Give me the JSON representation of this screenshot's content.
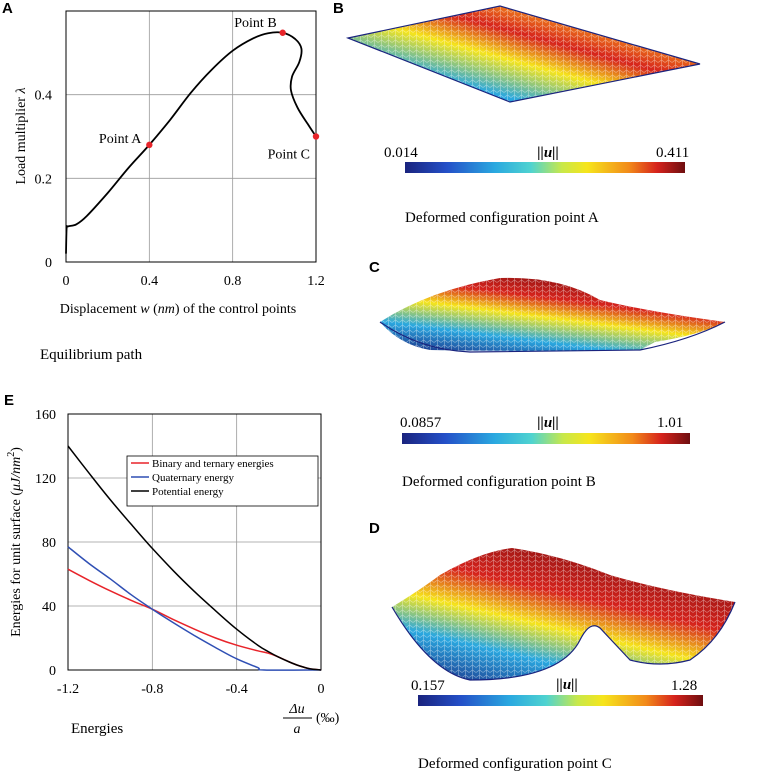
{
  "colors": {
    "red": "#e8242a",
    "blue": "#2f4fb4",
    "black": "#000000",
    "point": "#e8242a"
  },
  "panel_labels": {
    "A": "A",
    "B": "B",
    "C": "C",
    "D": "D",
    "E": "E"
  },
  "chart_data": [
    {
      "type": "line",
      "id": "A",
      "title": "",
      "caption": "Equilibrium path",
      "xlabel": "Displacement w (nm) of the control points",
      "xlabel_parts": {
        "pre": "Displacement ",
        "w": "w",
        "mid": " (",
        "nm": "nm",
        "post": ") of the control points"
      },
      "ylabel": "Load multiplier λ",
      "ylabel_parts": {
        "text": "Load multiplier ",
        "sym": "λ"
      },
      "xlim": [
        0,
        1.2
      ],
      "ylim": [
        0,
        0.6
      ],
      "xticks": [
        0,
        0.4,
        0.8,
        1.2
      ],
      "xtick_labels": [
        "0",
        "0.4",
        "0.8",
        "1.2"
      ],
      "yticks": [
        0,
        0.2,
        0.4
      ],
      "ytick_labels": [
        "0",
        "0.2",
        "0.4"
      ],
      "series": [
        {
          "name": "equilibrium path",
          "points": [
            [
              0,
              0.02
            ],
            [
              0.003,
              0.08
            ],
            [
              0.01,
              0.085
            ],
            [
              0.05,
              0.09
            ],
            [
              0.1,
              0.11
            ],
            [
              0.2,
              0.165
            ],
            [
              0.3,
              0.225
            ],
            [
              0.4,
              0.28
            ],
            [
              0.5,
              0.34
            ],
            [
              0.6,
              0.405
            ],
            [
              0.7,
              0.46
            ],
            [
              0.8,
              0.505
            ],
            [
              0.9,
              0.535
            ],
            [
              0.97,
              0.547
            ],
            [
              1.04,
              0.548
            ],
            [
              1.1,
              0.533
            ],
            [
              1.13,
              0.51
            ],
            [
              1.12,
              0.478
            ],
            [
              1.085,
              0.443
            ],
            [
              1.08,
              0.41
            ],
            [
              1.11,
              0.37
            ],
            [
              1.16,
              0.33
            ],
            [
              1.2,
              0.3
            ]
          ]
        }
      ],
      "points": [
        {
          "label": "Point A",
          "x": 0.4,
          "y": 0.28
        },
        {
          "label": "Point B",
          "x": 1.04,
          "y": 0.548
        },
        {
          "label": "Point C",
          "x": 1.2,
          "y": 0.3
        }
      ]
    },
    {
      "type": "line",
      "id": "E",
      "caption": "Energies",
      "xlabel": "Δu / a (‰)",
      "xlabel_parts": {
        "num": "Δu",
        "den": "a",
        "unit": "(‰)"
      },
      "ylabel": "Energies for unit surface (μJ/nm²)",
      "ylabel_parts": {
        "text": "Energies for unit surface (",
        "unit": "μJ/nm",
        "sup": "2",
        "close": ")"
      },
      "xlim": [
        -1.2,
        0
      ],
      "ylim": [
        0,
        160
      ],
      "xticks": [
        -1.2,
        -0.8,
        -0.4,
        0
      ],
      "xtick_labels": [
        "-1.2",
        "-0.8",
        "-0.4",
        "0"
      ],
      "yticks": [
        0,
        40,
        80,
        120,
        160
      ],
      "ytick_labels": [
        "0",
        "40",
        "80",
        "120",
        "160"
      ],
      "legend_position": "top-right",
      "series": [
        {
          "name": "Binary and ternary energies",
          "color": "#e8242a",
          "points": [
            [
              -1.2,
              63
            ],
            [
              -1.1,
              56
            ],
            [
              -1.0,
              49.5
            ],
            [
              -0.9,
              43.5
            ],
            [
              -0.8,
              38
            ],
            [
              -0.7,
              31.5
            ],
            [
              -0.6,
              25.5
            ],
            [
              -0.5,
              20
            ],
            [
              -0.4,
              15.5
            ],
            [
              -0.3,
              12
            ],
            [
              -0.25,
              10.5
            ],
            [
              -0.2,
              8
            ],
            [
              -0.15,
              5
            ],
            [
              -0.1,
              2.5
            ],
            [
              -0.05,
              0.7
            ],
            [
              0,
              0
            ]
          ]
        },
        {
          "name": "Quaternary energy",
          "color": "#2f4fb4",
          "points": [
            [
              -1.2,
              77
            ],
            [
              -1.1,
              66.5
            ],
            [
              -1.0,
              57
            ],
            [
              -0.9,
              47
            ],
            [
              -0.8,
              38
            ],
            [
              -0.7,
              29.5
            ],
            [
              -0.6,
              21.5
            ],
            [
              -0.5,
              14
            ],
            [
              -0.4,
              7
            ],
            [
              -0.3,
              1.5
            ],
            [
              -0.27,
              0
            ],
            [
              0,
              0
            ]
          ]
        },
        {
          "name": "Potential energy",
          "color": "#000000",
          "points": [
            [
              -1.2,
              140
            ],
            [
              -1.1,
              123
            ],
            [
              -1.0,
              106.5
            ],
            [
              -0.9,
              91
            ],
            [
              -0.8,
              76
            ],
            [
              -0.7,
              62
            ],
            [
              -0.6,
              49
            ],
            [
              -0.5,
              37
            ],
            [
              -0.4,
              25.5
            ],
            [
              -0.3,
              15.5
            ],
            [
              -0.25,
              11.5
            ],
            [
              -0.2,
              8
            ],
            [
              -0.15,
              5
            ],
            [
              -0.1,
              2.5
            ],
            [
              -0.05,
              0.7
            ],
            [
              0,
              0
            ]
          ]
        }
      ]
    }
  ],
  "deformed": [
    {
      "id": "B",
      "caption": "Deformed configuration point A",
      "cb_min": "0.014",
      "cb_max": "0.411",
      "norm_label": "||u||"
    },
    {
      "id": "C",
      "caption": "Deformed configuration point B",
      "cb_min": "0.0857",
      "cb_max": "1.01",
      "norm_label": "||u||"
    },
    {
      "id": "D",
      "caption": "Deformed configuration point C",
      "cb_min": "0.157",
      "cb_max": "1.28",
      "norm_label": "||u||"
    }
  ]
}
